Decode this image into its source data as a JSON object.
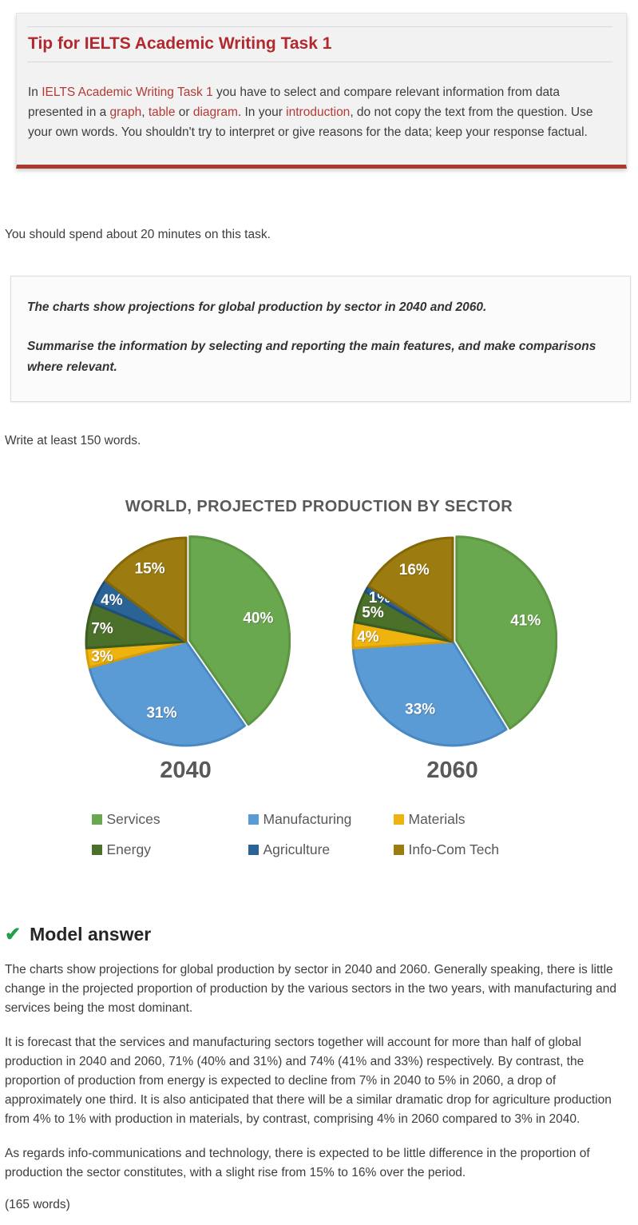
{
  "theme": {
    "accent_red": "#b2282e",
    "link_red": "#b23b36",
    "box_border_red": "#a93a2e",
    "muted_gray": "#595959",
    "check_green": "#21a048"
  },
  "tip_box": {
    "title": "Tip for IELTS Academic Writing Task 1",
    "paragraph": [
      {
        "text": "In ",
        "link": false
      },
      {
        "text": "IELTS Academic Writing Task 1",
        "link": true
      },
      {
        "text": " you have to select and compare relevant information from data presented in a ",
        "link": false
      },
      {
        "text": "graph",
        "link": true
      },
      {
        "text": ", ",
        "link": false
      },
      {
        "text": "table",
        "link": true
      },
      {
        "text": " or ",
        "link": false
      },
      {
        "text": "diagram",
        "link": true
      },
      {
        "text": ". In your ",
        "link": false
      },
      {
        "text": "introduction",
        "link": true
      },
      {
        "text": ", do not copy the text from the question. Use your own words. You shouldn't try to interpret or give reasons for the data; keep your response factual.",
        "link": false
      }
    ]
  },
  "instructions": {
    "time_note": "You should spend about 20 minutes on this task.",
    "task_prompt_1": "The charts show projections for global production by sector in 2040 and 2060.",
    "task_prompt_2": "Summarise the information by selecting and reporting the main features, and make comparisons where relevant.",
    "word_note": "Write at least 150 words."
  },
  "chart_data": {
    "type": "pie",
    "title": "WORLD, PROJECTED PRODUCTION BY SECTOR",
    "legend_position": "bottom",
    "data_labels": "percent, white, inside slices",
    "categories": [
      "Services",
      "Manufacturing",
      "Materials",
      "Energy",
      "Agriculture",
      "Info-Com Tech"
    ],
    "colors": [
      "#6aa84f",
      "#5b9bd5",
      "#efb310",
      "#4b7029",
      "#2a6496",
      "#9c7b10"
    ],
    "border_colors": [
      "#5d9544",
      "#4a88c0",
      "#d69f05",
      "#3c5c20",
      "#1f4e79",
      "#846808"
    ],
    "series": [
      {
        "name": "2040",
        "values": [
          40,
          31,
          3,
          7,
          4,
          15
        ]
      },
      {
        "name": "2060",
        "values": [
          41,
          33,
          4,
          5,
          1,
          16
        ]
      }
    ]
  },
  "model_answer": {
    "heading": "Model answer",
    "paragraphs": [
      "The charts show projections for global production by sector in 2040 and 2060. Generally speaking, there is little change in the projected proportion of production by the various sectors in the two years, with manufacturing and services being the most dominant.",
      "It is forecast that the services and manufacturing sectors together will account for more than half of global production in 2040 and 2060, 71% (40% and 31%) and 74% (41% and 33%) respectively. By contrast, the proportion of production from energy is expected to decline from 7% in 2040 to 5% in 2060, a drop of approximately one third. It is also anticipated that there will be a similar dramatic drop for agriculture production from 4% to 1% with production in materials, by contrast, comprising 4% in 2060 compared to 3% in 2040.",
      "As regards info-communications and technology, there is expected to be little difference in the proportion of production the sector constitutes, with a slight rise from 15% to 16% over the period."
    ],
    "word_count": "(165 words)"
  }
}
